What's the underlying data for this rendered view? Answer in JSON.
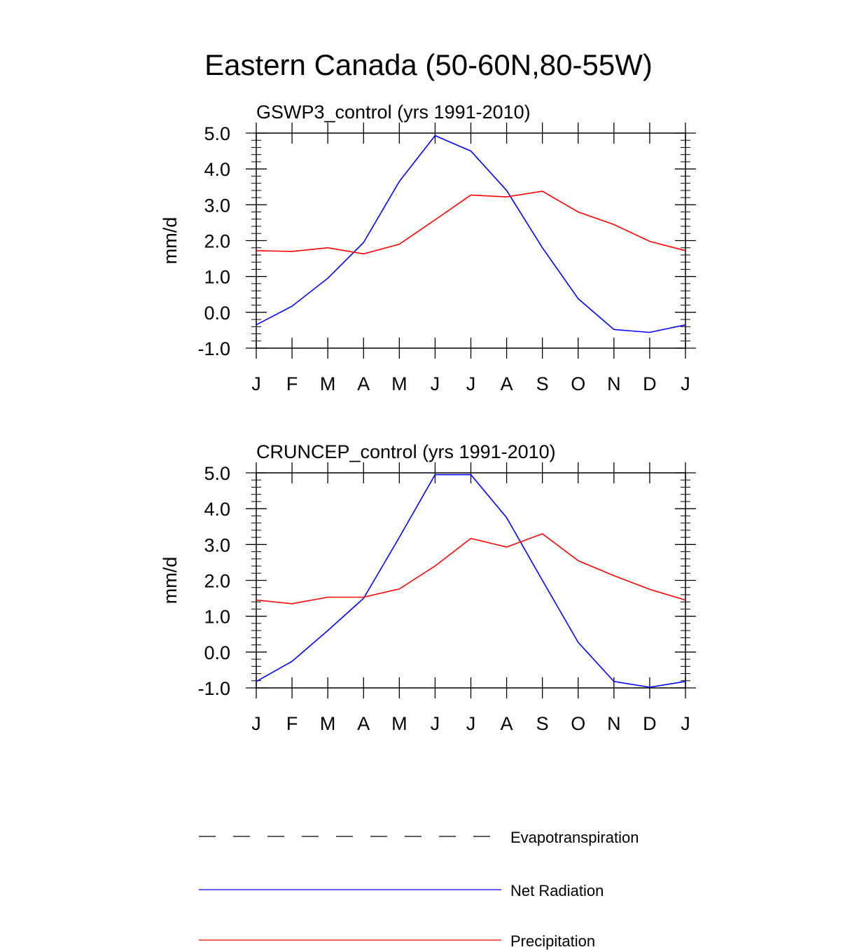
{
  "title": "Eastern Canada (50-60N,80-55W)",
  "colors": {
    "Evapotranspiration": "#000000",
    "Net Radiation": "#0000ff",
    "Precipitation": "#ff0000"
  },
  "legend": [
    {
      "name": "Evapotranspiration",
      "style": "dashed"
    },
    {
      "name": "Net Radiation",
      "style": "solid"
    },
    {
      "name": "Precipitation",
      "style": "solid"
    }
  ],
  "chart_data": [
    {
      "type": "line",
      "title": "GSWP3_control (yrs 1991-2010)",
      "ylabel": "mm/d",
      "xlabel": "",
      "categories": [
        "J",
        "F",
        "M",
        "A",
        "M",
        "J",
        "J",
        "A",
        "S",
        "O",
        "N",
        "D",
        "J"
      ],
      "ylim": [
        -1.0,
        5.0
      ],
      "yticks": [
        "-1.0",
        "0.0",
        "1.0",
        "2.0",
        "3.0",
        "4.0",
        "5.0"
      ],
      "series": [
        {
          "name": "Net Radiation",
          "values": [
            -0.35,
            0.17,
            0.95,
            1.95,
            3.65,
            4.93,
            4.5,
            3.4,
            1.8,
            0.38,
            -0.48,
            -0.56,
            -0.35
          ]
        },
        {
          "name": "Precipitation",
          "values": [
            1.72,
            1.7,
            1.8,
            1.63,
            1.9,
            2.58,
            3.27,
            3.22,
            3.38,
            2.8,
            2.45,
            1.98,
            1.72
          ]
        }
      ]
    },
    {
      "type": "line",
      "title": "CRUNCEP_control (yrs 1991-2010)",
      "ylabel": "mm/d",
      "xlabel": "",
      "categories": [
        "J",
        "F",
        "M",
        "A",
        "M",
        "J",
        "J",
        "A",
        "S",
        "O",
        "N",
        "D",
        "J"
      ],
      "ylim": [
        -1.0,
        5.0
      ],
      "yticks": [
        "-1.0",
        "0.0",
        "1.0",
        "2.0",
        "3.0",
        "4.0",
        "5.0"
      ],
      "series": [
        {
          "name": "Net Radiation",
          "values": [
            -0.82,
            -0.26,
            0.6,
            1.5,
            3.2,
            4.95,
            4.95,
            3.75,
            2.0,
            0.27,
            -0.82,
            -0.98,
            -0.82
          ]
        },
        {
          "name": "Precipitation",
          "values": [
            1.45,
            1.35,
            1.53,
            1.53,
            1.76,
            2.4,
            3.17,
            2.93,
            3.3,
            2.55,
            2.13,
            1.75,
            1.45
          ]
        }
      ]
    }
  ]
}
